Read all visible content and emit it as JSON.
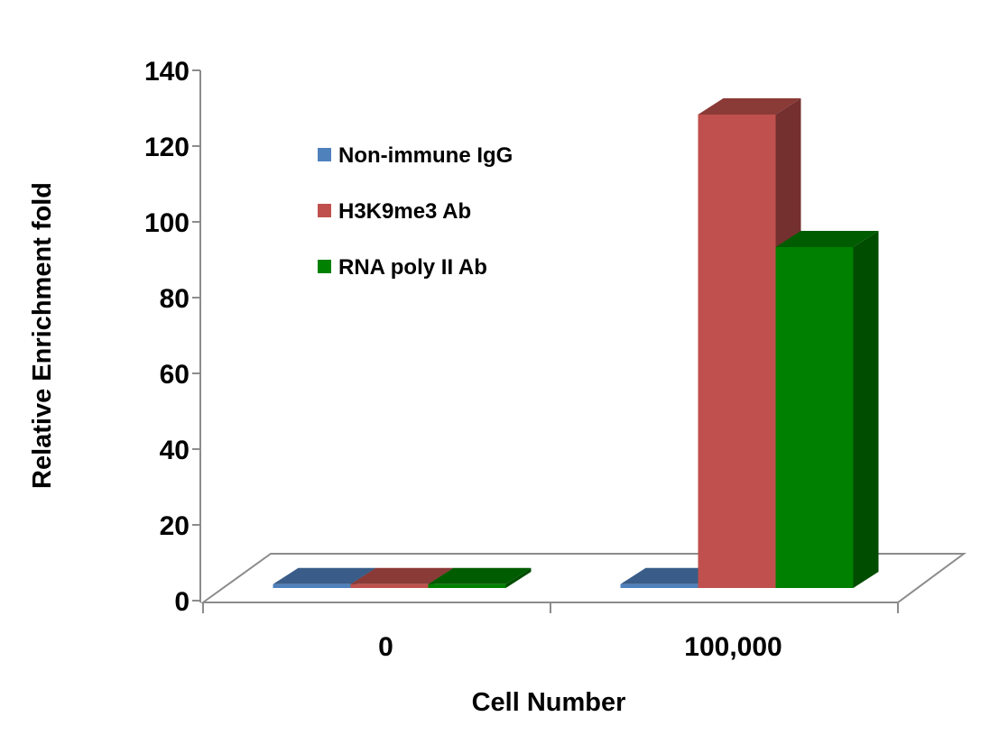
{
  "chart_data": {
    "type": "bar",
    "style": "3d-clustered-column",
    "title": "",
    "xlabel": "Cell Number",
    "ylabel": "Relative Enrichment fold",
    "categories": [
      "0",
      "100,000"
    ],
    "ylim": [
      0,
      140
    ],
    "yticks": [
      "0",
      "20",
      "40",
      "60",
      "80",
      "100",
      "120",
      "140"
    ],
    "grid": false,
    "legend_position": "top-left",
    "series": [
      {
        "name": "Non-immune IgG",
        "color": "#4f81bd",
        "values": [
          1,
          1
        ]
      },
      {
        "name": "H3K9me3 Ab",
        "color": "#c0504d",
        "values": [
          1,
          125
        ]
      },
      {
        "name": "RNA poly II Ab",
        "color": "#008000",
        "values": [
          1,
          90
        ]
      }
    ]
  }
}
